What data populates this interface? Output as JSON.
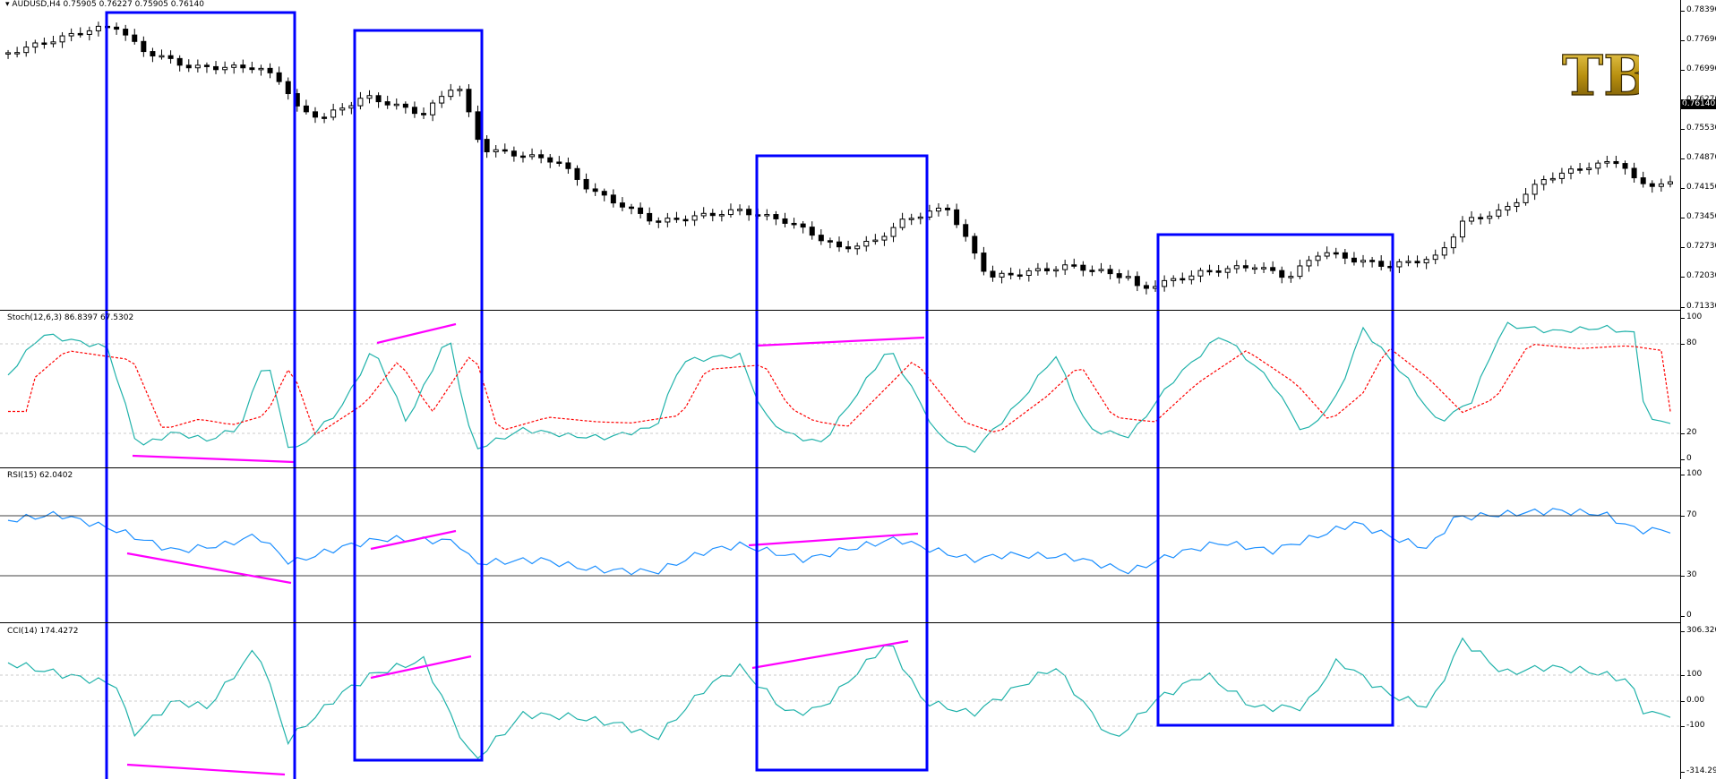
{
  "main": {
    "symbol_line": "AUDUSD,H4  0.75905 0.76227 0.75905 0.76140",
    "price_scale": [
      "0.78390",
      "0.77690",
      "0.76990",
      "0.76270",
      "0.75530",
      "0.74870",
      "0.74150",
      "0.73450",
      "0.72730",
      "0.72030",
      "0.71330"
    ],
    "current_price": "0.76140"
  },
  "stoch": {
    "label": "Stoch(12,6,3) 86.8397 67.5302",
    "scale": [
      "100",
      "80",
      "20",
      "0"
    ]
  },
  "rsi": {
    "label": "RSI(15) 62.0402",
    "scale": [
      "100",
      "70",
      "30",
      "0"
    ]
  },
  "cci": {
    "label": "CCI(14) 174.4272",
    "scale": [
      "306.3206",
      "100",
      "0.00",
      "-100",
      "-314.2941"
    ]
  },
  "logo": {
    "text": "TB",
    "color": "#b8900f"
  },
  "colors": {
    "candle": "#000000",
    "indicator_main": "#20b2aa",
    "stoch_signal": "#ff0000",
    "rsi_line": "#1e90ff",
    "divergence": "#ff00ff",
    "box": "#0000ff"
  }
}
